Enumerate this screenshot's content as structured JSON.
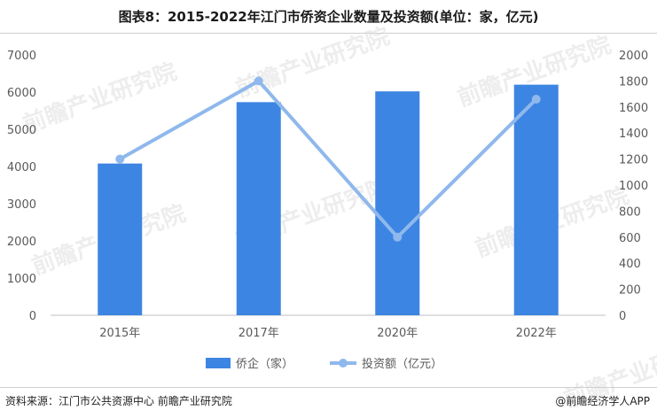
{
  "title": "图表8：2015-2022年江门市侨资企业数量及投资额(单位：家，亿元)",
  "watermark": "前瞻产业研究院",
  "footer": {
    "source": "资料来源：江门市公共资源中心 前瞻产业研究院",
    "brand": "@前瞻经济学人APP"
  },
  "colors": {
    "bar": "#3d85e2",
    "line": "#8fb8ec"
  },
  "chart_data": {
    "type": "bar",
    "categories": [
      "2015年",
      "2017年",
      "2020年",
      "2022年"
    ],
    "series": [
      {
        "name": "侨企（家）",
        "type": "bar",
        "axis": "left",
        "values": [
          4080,
          5730,
          6020,
          6200
        ]
      },
      {
        "name": "投资额（亿元）",
        "type": "line",
        "axis": "right",
        "values": [
          1200,
          1800,
          600,
          1660
        ]
      }
    ],
    "yleft": {
      "min": 0,
      "max": 7000,
      "ticks": [
        "0",
        "1000",
        "2000",
        "3000",
        "4000",
        "5000",
        "6000",
        "7000"
      ]
    },
    "yright": {
      "min": 0,
      "max": 2000,
      "ticks": [
        "0",
        "200",
        "400",
        "600",
        "800",
        "1000",
        "1200",
        "1400",
        "1600",
        "1800",
        "2000"
      ]
    },
    "legend_position": "bottom",
    "grid": false
  }
}
